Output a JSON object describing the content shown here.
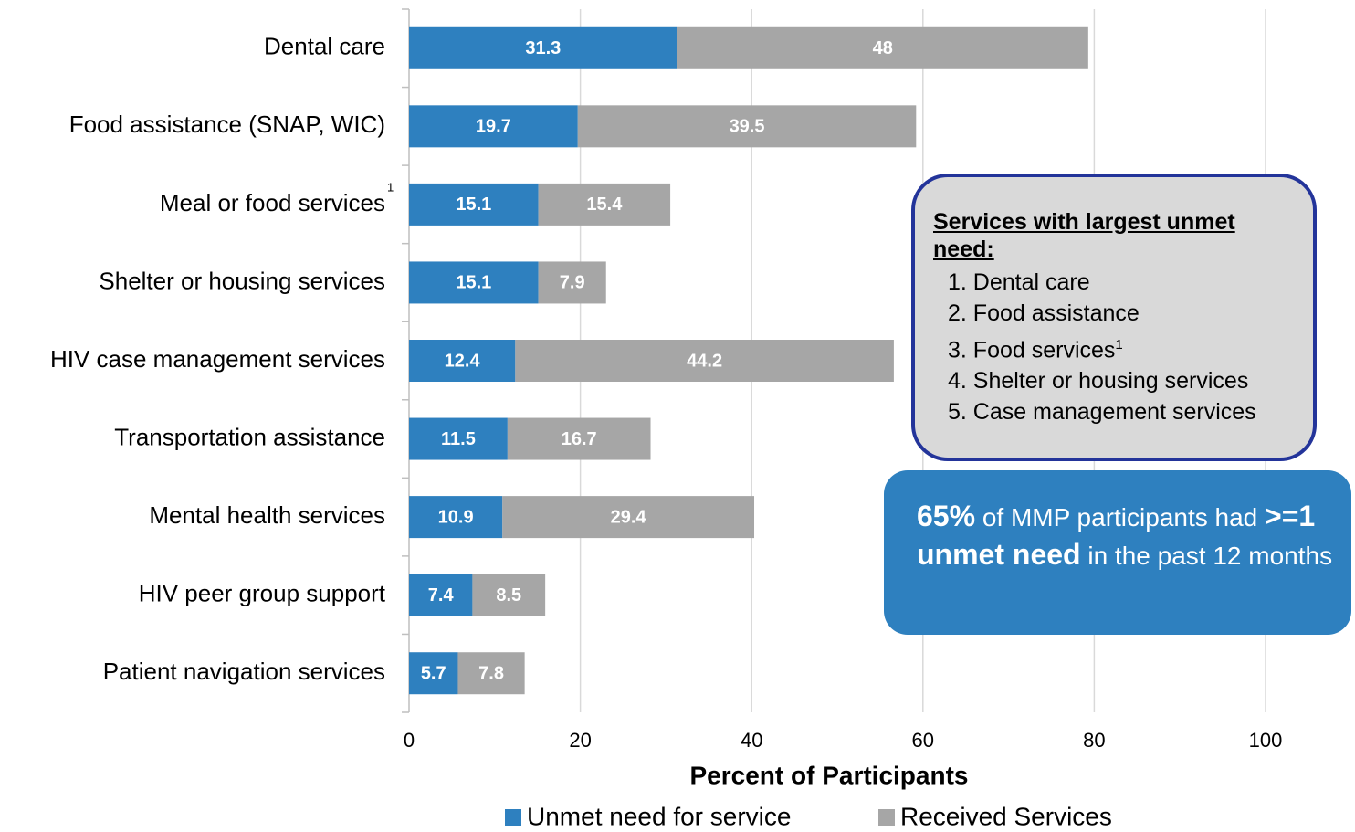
{
  "chart_data": {
    "type": "stacked_barh",
    "categories": [
      "Dental care",
      "Food assistance (SNAP, WIC)",
      "Meal or food services",
      "Shelter or housing services",
      "HIV case management services",
      "Transportation assistance",
      "Mental health services",
      "HIV peer group support",
      "Patient navigation services"
    ],
    "category_notes": [
      null,
      null,
      "1",
      null,
      null,
      null,
      null,
      null,
      null
    ],
    "series": [
      {
        "name": "Unmet need for service",
        "color": "#2e80bf",
        "values": [
          31.3,
          19.7,
          15.1,
          15.1,
          12.4,
          11.5,
          10.9,
          7.4,
          5.7
        ]
      },
      {
        "name": "Received Services",
        "color": "#a6a6a6",
        "values": [
          48,
          39.5,
          15.4,
          7.9,
          44.2,
          16.7,
          29.4,
          8.5,
          7.8
        ]
      }
    ],
    "xlabel": "Percent of Participants",
    "xlim": [
      0,
      100
    ],
    "xticks": [
      0,
      20,
      40,
      60,
      80,
      100
    ],
    "grid": true,
    "legend": "bottom"
  },
  "notes_box": {
    "title": "Services with largest unmet need:",
    "items": [
      {
        "text": "1. Dental care"
      },
      {
        "text": "2. Food assistance"
      },
      {
        "text": "3. Food services",
        "note": "1"
      },
      {
        "text": "4. Shelter or housing services"
      },
      {
        "text": "5. Case management services"
      }
    ]
  },
  "highlight_box": {
    "segments": [
      {
        "text": "65%",
        "bold": true
      },
      {
        "text": " of MMP participants had "
      },
      {
        "text": ">=1 unmet need",
        "bold": true
      },
      {
        "text": " in the past 12 months"
      }
    ]
  }
}
